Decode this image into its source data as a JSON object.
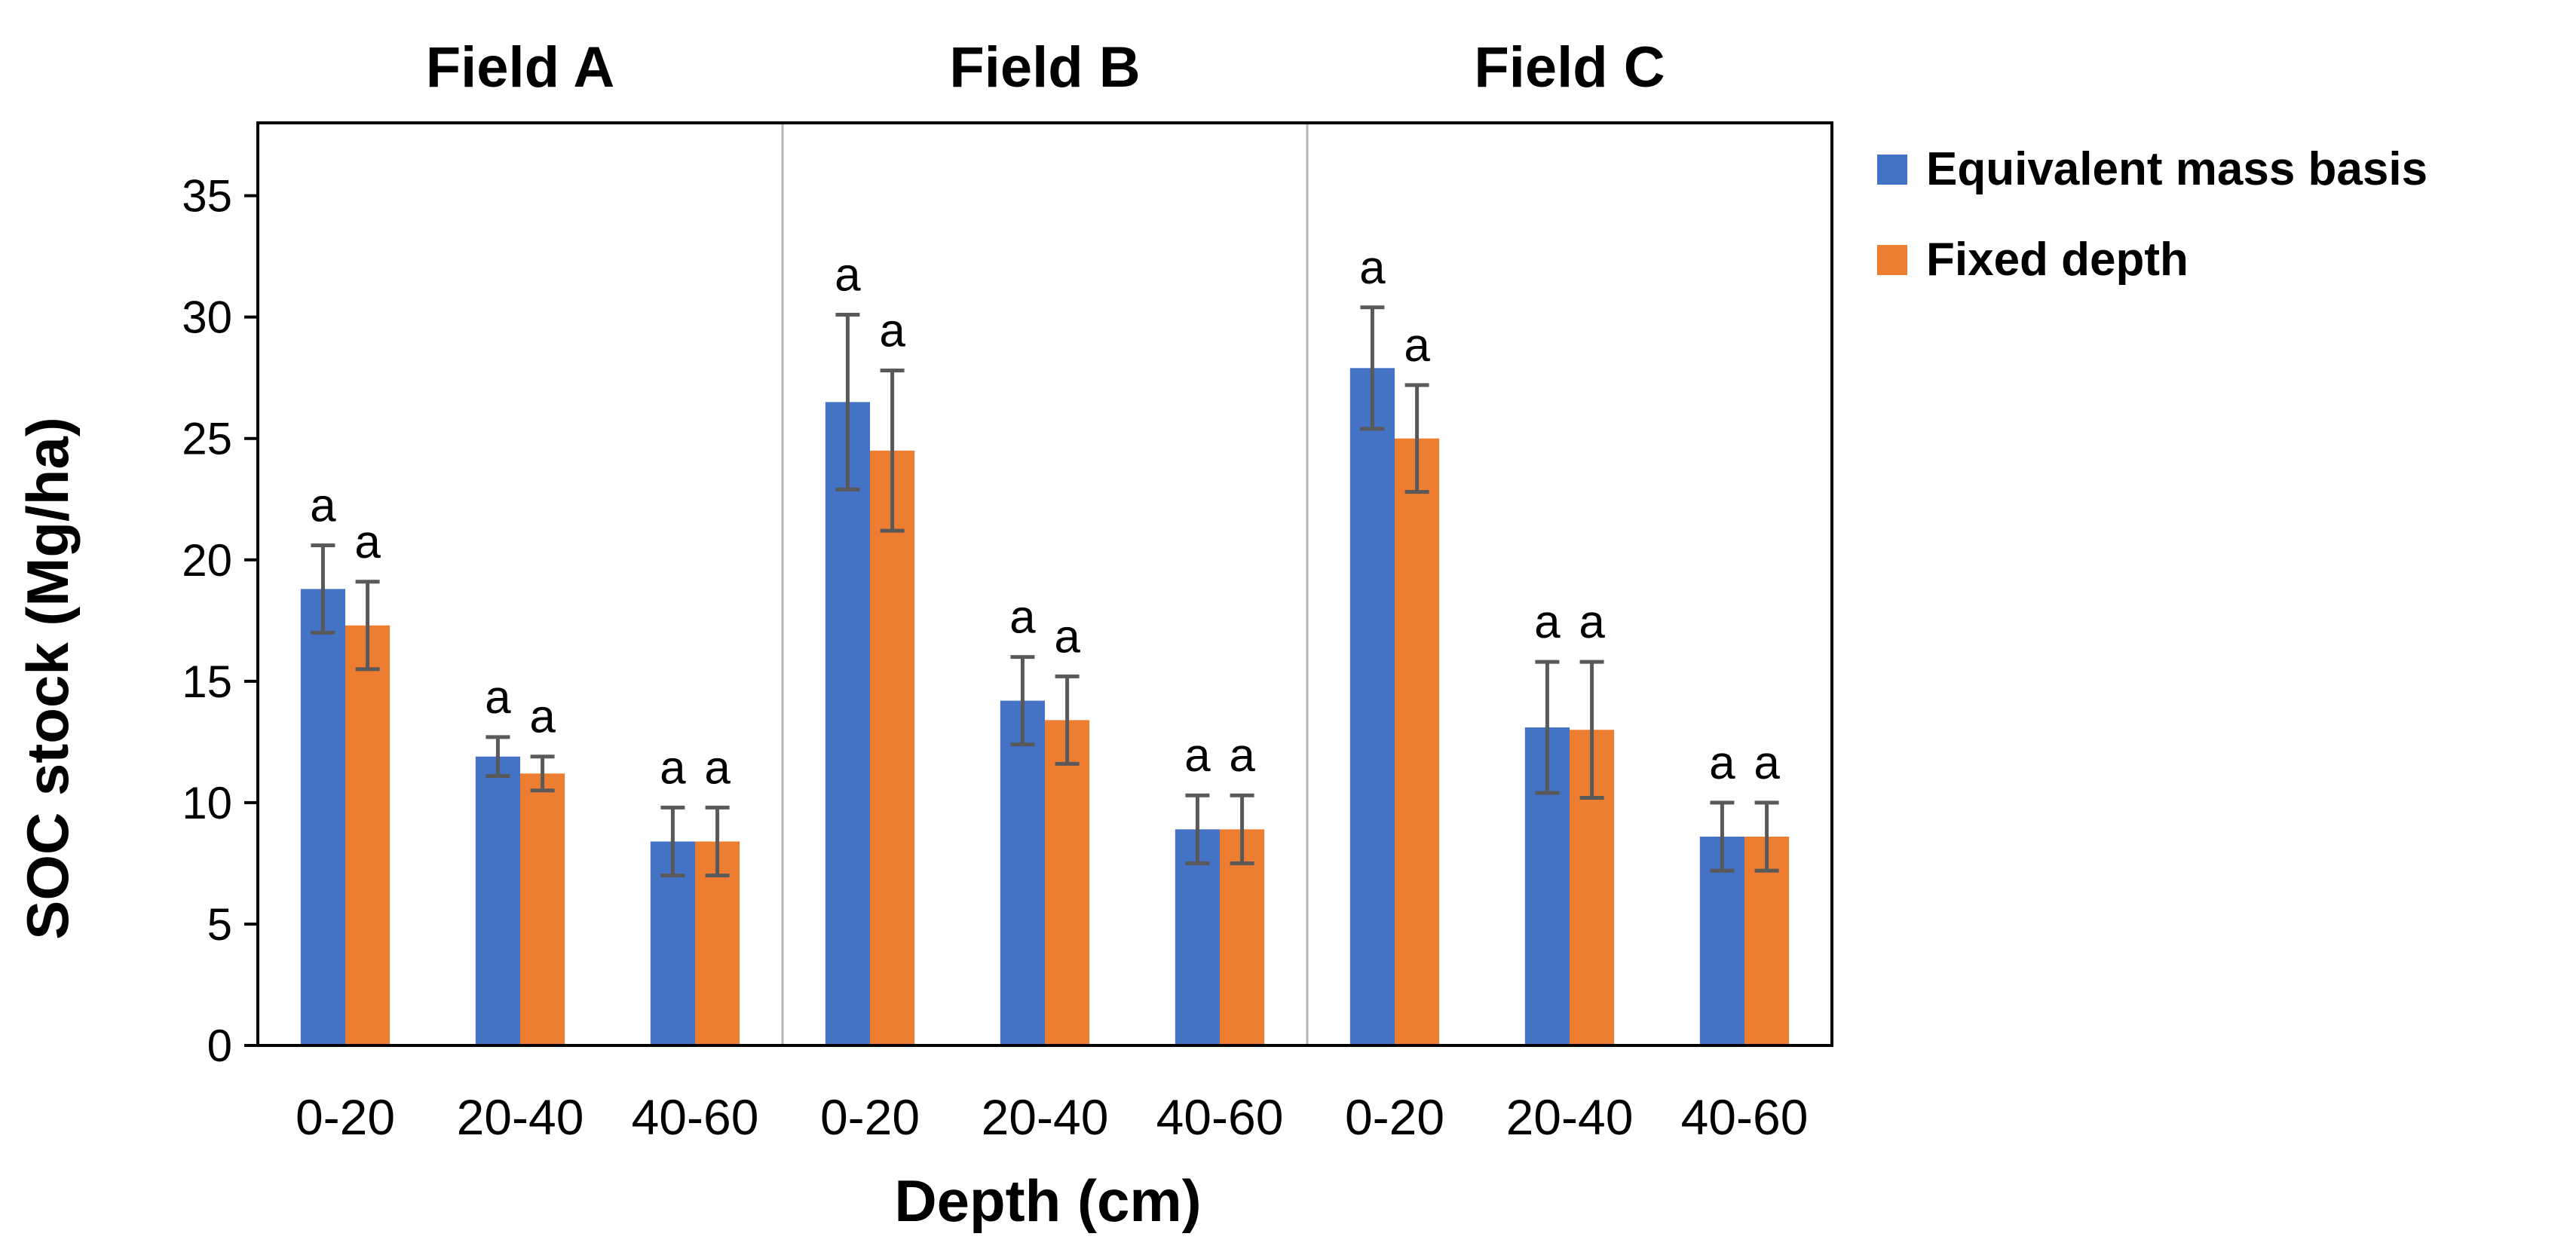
{
  "chart_data": {
    "type": "bar",
    "xlabel": "Depth (cm)",
    "ylabel": "SOC stock (Mg/ha)",
    "ylim": [
      0,
      38
    ],
    "yticks": [
      0,
      5,
      10,
      15,
      20,
      25,
      30,
      35
    ],
    "legend_position": "right",
    "groups": [
      {
        "title": "Field A",
        "categories": [
          "0-20",
          "20-40",
          "40-60"
        ]
      },
      {
        "title": "Field B",
        "categories": [
          "0-20",
          "20-40",
          "40-60"
        ]
      },
      {
        "title": "Field C",
        "categories": [
          "0-20",
          "20-40",
          "40-60"
        ]
      }
    ],
    "series": [
      {
        "name": "Equivalent mass basis",
        "color": "#4472C4",
        "values": [
          18.8,
          11.9,
          8.4,
          26.5,
          14.2,
          8.9,
          27.9,
          13.1,
          8.6
        ],
        "errors": [
          1.8,
          0.8,
          1.4,
          3.6,
          1.8,
          1.4,
          2.5,
          2.7,
          1.4
        ],
        "labels": [
          "a",
          "a",
          "a",
          "a",
          "a",
          "a",
          "a",
          "a",
          "a"
        ]
      },
      {
        "name": "Fixed depth",
        "color": "#ED7D31",
        "values": [
          17.3,
          11.2,
          8.4,
          24.5,
          13.4,
          8.9,
          25.0,
          13.0,
          8.6
        ],
        "errors": [
          1.8,
          0.7,
          1.4,
          3.3,
          1.8,
          1.4,
          2.2,
          2.8,
          1.4
        ],
        "labels": [
          "a",
          "a",
          "a",
          "a",
          "a",
          "a",
          "a",
          "a",
          "a"
        ]
      }
    ]
  }
}
